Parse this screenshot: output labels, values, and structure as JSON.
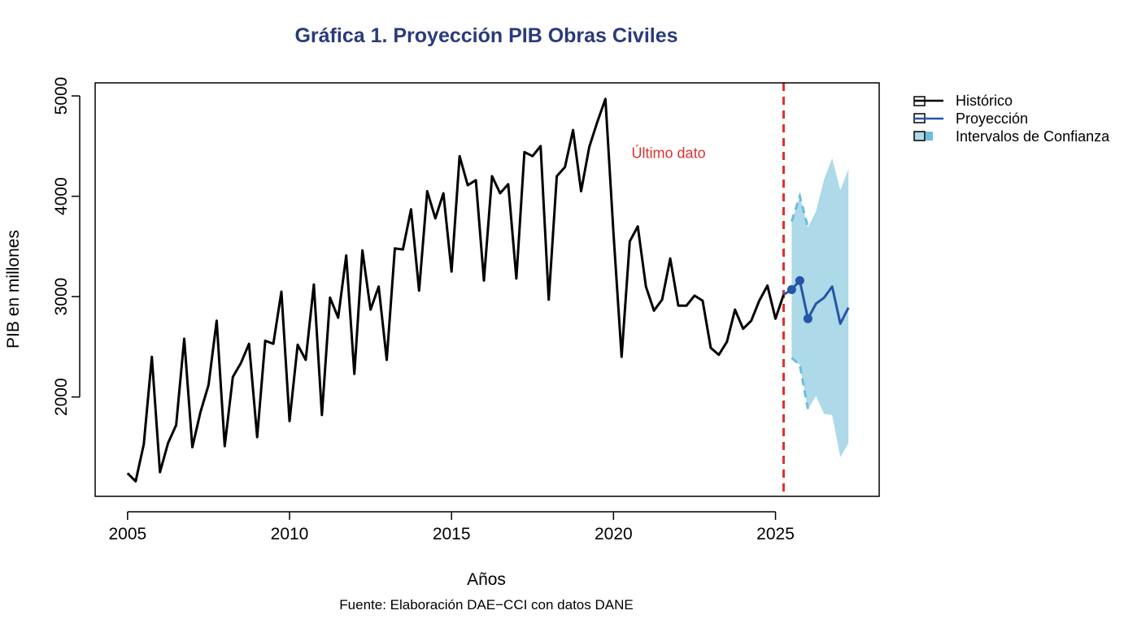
{
  "chart_data": {
    "type": "line",
    "title": "Gráfica 1. Proyección PIB Obras Civiles",
    "xlabel": "Años",
    "ylabel": "PIB en millones",
    "caption": "Fuente: Elaboración DAE−CCI con datos DANE",
    "xlim": [
      2004.0,
      2028.2
    ],
    "ylim": [
      1010,
      5130
    ],
    "x_ticks": [
      2005,
      2010,
      2015,
      2020,
      2025
    ],
    "x_tick_labels": [
      "2005",
      "2010",
      "2015",
      "2020",
      "2025"
    ],
    "y_ticks": [
      2000,
      3000,
      4000,
      5000
    ],
    "y_tick_labels": [
      "2000",
      "3000",
      "4000",
      "5000"
    ],
    "annotation": {
      "text": "Último dato",
      "x": 2021.7,
      "y": 4380,
      "color": "#e03030"
    },
    "last_data_x": 2025.25,
    "legend": {
      "position": "top-right",
      "entries": [
        "Histórico",
        "Proyección",
        "Intervalos de Confianza"
      ]
    },
    "colors": {
      "historico": "#000000",
      "proyeccion": "#2456a8",
      "intervalos": "#add9e8",
      "intervalos_edge": "#6bbfdc",
      "title": "#2a3a7c",
      "vline": "#e03030"
    },
    "series": [
      {
        "name": "Histórico",
        "x": [
          2005.0,
          2005.25,
          2005.5,
          2005.75,
          2006.0,
          2006.25,
          2006.5,
          2006.75,
          2007.0,
          2007.25,
          2007.5,
          2007.75,
          2008.0,
          2008.25,
          2008.5,
          2008.75,
          2009.0,
          2009.25,
          2009.5,
          2009.75,
          2010.0,
          2010.25,
          2010.5,
          2010.75,
          2011.0,
          2011.25,
          2011.5,
          2011.75,
          2012.0,
          2012.25,
          2012.5,
          2012.75,
          2013.0,
          2013.25,
          2013.5,
          2013.75,
          2014.0,
          2014.25,
          2014.5,
          2014.75,
          2015.0,
          2015.25,
          2015.5,
          2015.75,
          2016.0,
          2016.25,
          2016.5,
          2016.75,
          2017.0,
          2017.25,
          2017.5,
          2017.75,
          2018.0,
          2018.25,
          2018.5,
          2018.75,
          2019.0,
          2019.25,
          2019.5,
          2019.75,
          2020.0,
          2020.25,
          2020.5,
          2020.75,
          2021.0,
          2021.25,
          2021.5,
          2021.75,
          2022.0,
          2022.25,
          2022.5,
          2022.75,
          2023.0,
          2023.25,
          2023.5,
          2023.75,
          2024.0,
          2024.25,
          2024.5,
          2024.75,
          2025.0,
          2025.25
        ],
        "values": [
          1240,
          1160,
          1530,
          2400,
          1250,
          1540,
          1720,
          2580,
          1500,
          1850,
          2120,
          2760,
          1510,
          2200,
          2340,
          2530,
          1600,
          2560,
          2530,
          3050,
          1760,
          2520,
          2370,
          3120,
          1820,
          2990,
          2790,
          3410,
          2230,
          3460,
          2870,
          3100,
          2370,
          3480,
          3470,
          3870,
          3060,
          4050,
          3780,
          4030,
          3250,
          4400,
          4110,
          4160,
          3160,
          4200,
          4030,
          4120,
          3180,
          4440,
          4400,
          4500,
          2970,
          4200,
          4290,
          4660,
          4050,
          4490,
          4740,
          4970,
          3620,
          2400,
          3550,
          3700,
          3100,
          2860,
          2970,
          3380,
          2910,
          2910,
          3010,
          2960,
          2490,
          2420,
          2550,
          2870,
          2680,
          2760,
          2960,
          3110,
          2780,
          3020
        ]
      },
      {
        "name": "Proyección",
        "x": [
          2025.25,
          2025.5,
          2025.75,
          2026.0,
          2026.25,
          2026.5,
          2026.75,
          2027.0,
          2027.25
        ],
        "values": [
          3020,
          3070,
          3160,
          2780,
          2930,
          2990,
          3100,
          2730,
          2890
        ],
        "markers": [
          2025.5,
          2025.75,
          2026.0
        ]
      },
      {
        "name": "Intervalos de Confianza",
        "x": [
          2025.5,
          2025.75,
          2026.0,
          2026.25,
          2026.5,
          2026.75,
          2027.0,
          2027.25
        ],
        "upper": [
          3750,
          4000,
          3690,
          3850,
          4170,
          4380,
          4060,
          4270
        ],
        "lower": [
          2390,
          2320,
          1880,
          2010,
          1830,
          1820,
          1400,
          1540
        ]
      }
    ]
  }
}
